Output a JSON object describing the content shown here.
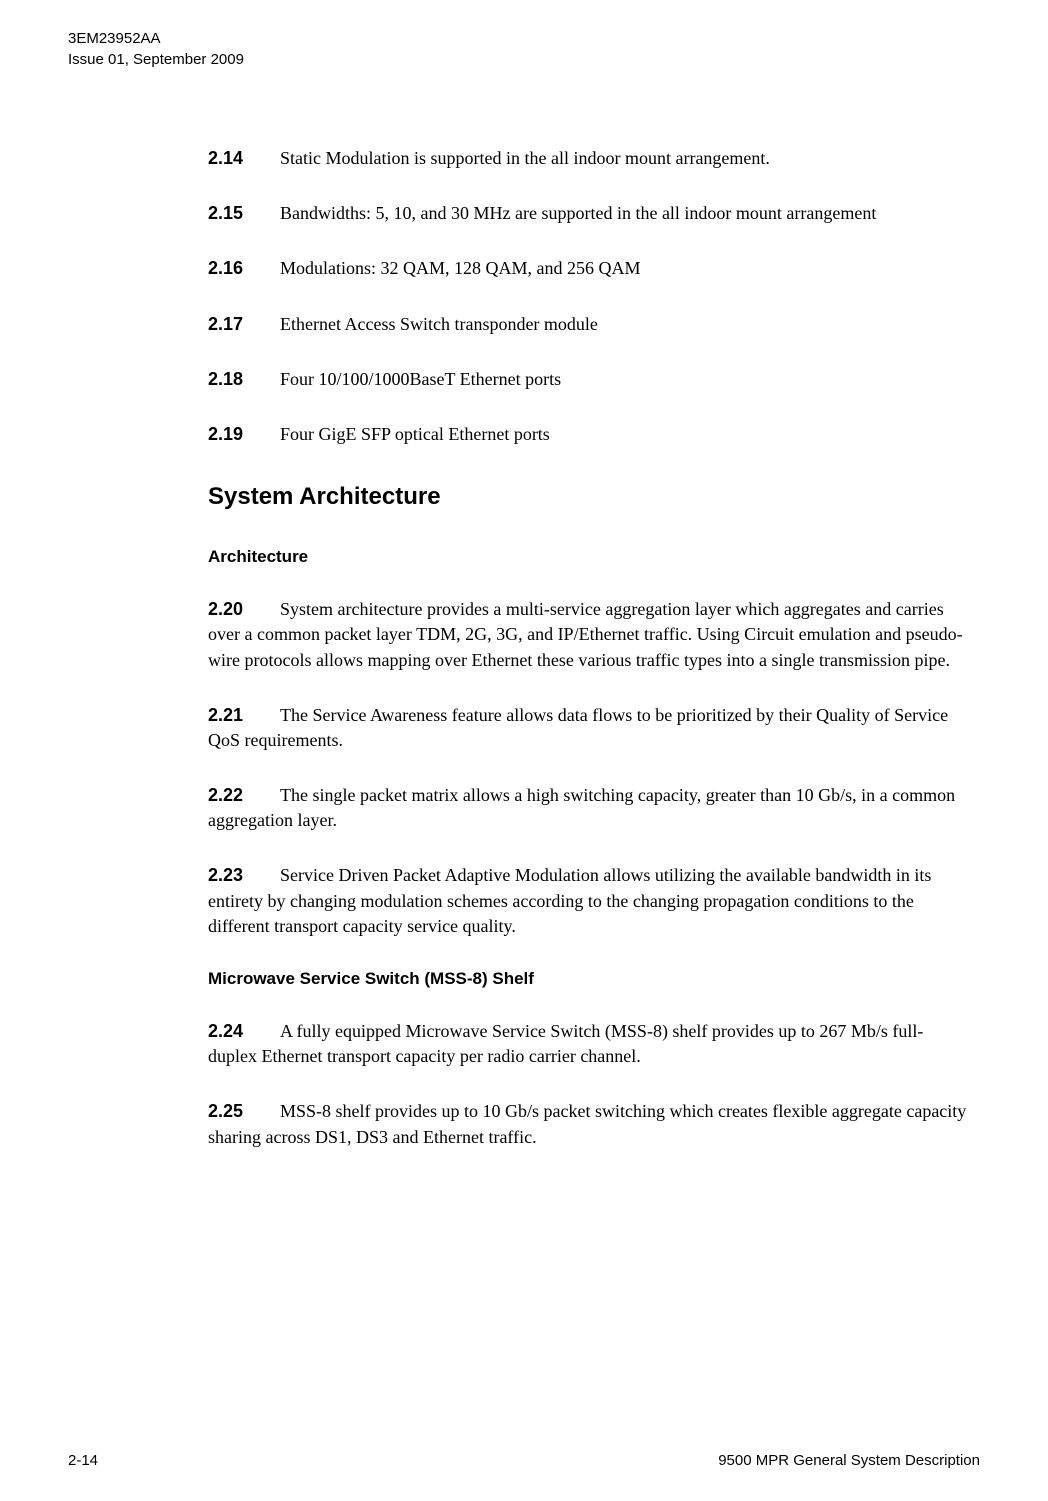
{
  "header": {
    "doc_id": "3EM23952AA",
    "issue": "Issue 01, September 2009"
  },
  "items": {
    "i214": {
      "num": "2.14",
      "text": "Static Modulation is supported in the all indoor mount arrangement."
    },
    "i215": {
      "num": "2.15",
      "text": "Bandwidths: 5, 10, and 30 MHz are supported in the all indoor mount arrangement"
    },
    "i216": {
      "num": "2.16",
      "text": "Modulations: 32 QAM, 128 QAM, and 256 QAM"
    },
    "i217": {
      "num": "2.17",
      "text": "Ethernet Access Switch transponder module"
    },
    "i218": {
      "num": "2.18",
      "text": "Four 10/100/1000BaseT Ethernet ports"
    },
    "i219": {
      "num": "2.19",
      "text": "Four GigE SFP optical Ethernet ports"
    },
    "i220": {
      "num": "2.20",
      "text": "System architecture provides a multi-service aggregation layer which aggregates and carries over a common packet layer TDM, 2G, 3G, and IP/Ethernet traffic. Using Circuit emulation and pseudo-wire protocols allows mapping over Ethernet these various traffic types into a single transmission pipe."
    },
    "i221": {
      "num": "2.21",
      "text": "The Service Awareness feature allows data flows to be prioritized by their Quality of Service QoS requirements."
    },
    "i222": {
      "num": "2.22",
      "text": "The single packet matrix allows a high switching capacity, greater than 10 Gb/s, in a common aggregation layer."
    },
    "i223": {
      "num": "2.23",
      "text": "Service Driven Packet Adaptive Modulation allows utilizing the available bandwidth in its entirety by changing modulation schemes according to the changing propagation conditions to the different transport capacity service quality."
    },
    "i224": {
      "num": "2.24",
      "text": "A fully equipped Microwave Service Switch (MSS-8) shelf provides up to 267 Mb/s full-duplex Ethernet transport capacity per radio carrier channel."
    },
    "i225": {
      "num": "2.25",
      "text": "MSS-8 shelf provides up to 10 Gb/s packet switching which creates flexible aggregate capacity sharing across DS1, DS3 and Ethernet traffic."
    }
  },
  "headings": {
    "section": "System Architecture",
    "sub1": "Architecture",
    "sub2": "Microwave Service Switch (MSS-8) Shelf"
  },
  "footer": {
    "page": "2-14",
    "title": "9500 MPR General System Description"
  }
}
